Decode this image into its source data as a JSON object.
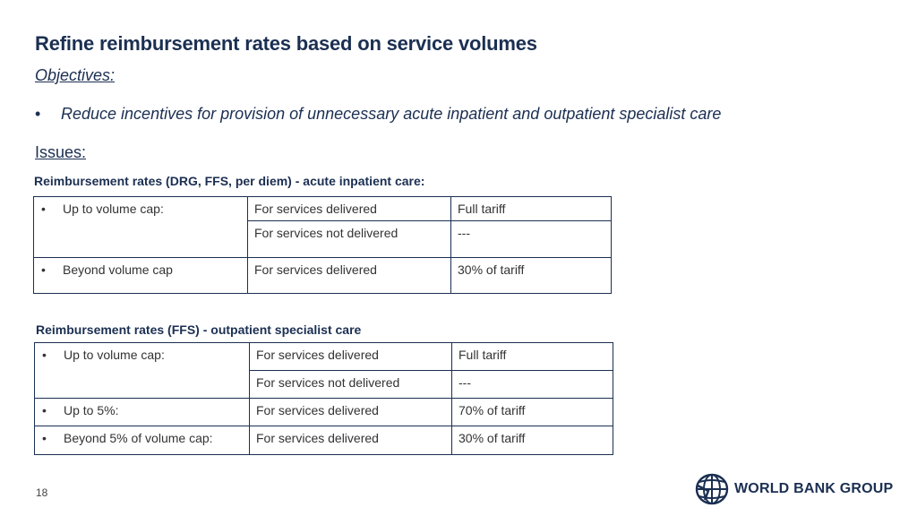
{
  "slide": {
    "title": "Refine reimbursement rates based on service volumes",
    "objectives_label": "Objectives:",
    "objectives": [
      "Reduce incentives for provision of unnecessary acute inpatient and outpatient specialist care"
    ],
    "issues_label": "Issues:",
    "bullet": "•",
    "page_number": "18"
  },
  "inpatient": {
    "title": "Reimbursement rates (DRG, FFS, per diem) - acute inpatient care:",
    "rows": [
      {
        "label": "Up to volume cap:",
        "service": "For services delivered",
        "rate": "Full tariff"
      },
      {
        "label": "",
        "service": "For services not delivered",
        "rate": "---"
      },
      {
        "label": "Beyond volume cap",
        "service": "For services delivered",
        "rate": "30% of tariff"
      }
    ]
  },
  "outpatient": {
    "title": "Reimbursement rates (FFS) - outpatient specialist care",
    "rows": [
      {
        "label": "Up to volume cap:",
        "service": "For services delivered",
        "rate": "Full tariff"
      },
      {
        "label": "",
        "service": "For services not delivered",
        "rate": "---"
      },
      {
        "label": "Up to 5%:",
        "service": "For services delivered",
        "rate": "70% of tariff"
      },
      {
        "label": "Beyond 5% of volume cap:",
        "service": "For services delivered",
        "rate": "30% of tariff"
      }
    ]
  },
  "logo": {
    "text": "WORLD BANK GROUP",
    "icon": "globe-icon",
    "color": "#1b2f52"
  }
}
